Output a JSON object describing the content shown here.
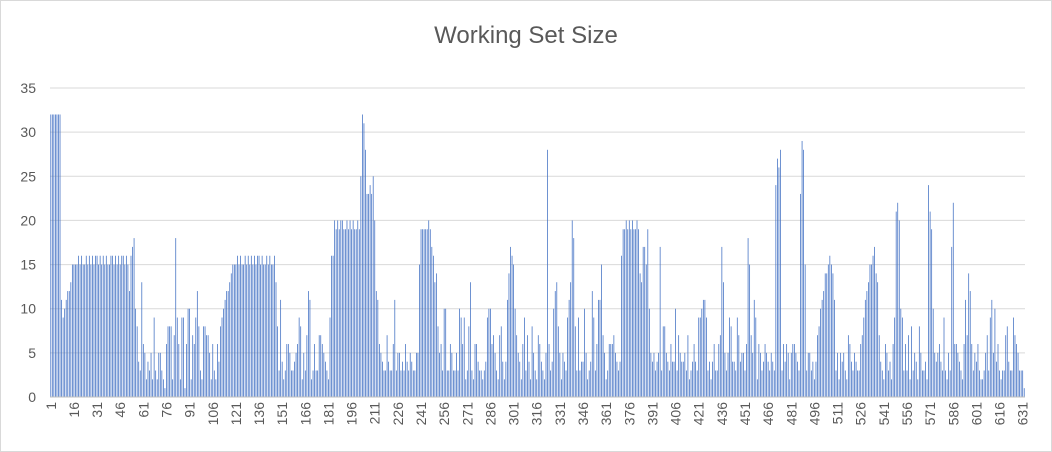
{
  "chart_data": {
    "type": "bar",
    "title": "Working Set Size",
    "xlabel": "",
    "ylabel": "",
    "ylim": [
      0,
      35
    ],
    "yticks": [
      0,
      5,
      10,
      15,
      20,
      25,
      30,
      35
    ],
    "grid": "horizontal",
    "legend": "none",
    "bar_color": "#4472c4",
    "x_start": 1,
    "x_tick_step": 15,
    "values": [
      32,
      32,
      32,
      32,
      32,
      32,
      32,
      11,
      9,
      10,
      11,
      12,
      12,
      13,
      15,
      15,
      15,
      15,
      16,
      15,
      16,
      15,
      15,
      16,
      15,
      16,
      15,
      16,
      15,
      16,
      16,
      15,
      16,
      15,
      16,
      15,
      16,
      15,
      15,
      16,
      16,
      15,
      16,
      15,
      16,
      15,
      16,
      16,
      15,
      16,
      15,
      12,
      16,
      17,
      18,
      10,
      8,
      4,
      3,
      13,
      6,
      5,
      2,
      4,
      3,
      5,
      2,
      9,
      3,
      2,
      5,
      5,
      3,
      2,
      1,
      6,
      8,
      8,
      8,
      2,
      7,
      18,
      9,
      6,
      2,
      9,
      9,
      1,
      6,
      10,
      10,
      2,
      7,
      6,
      9,
      12,
      8,
      3,
      2,
      8,
      8,
      7,
      7,
      5,
      2,
      6,
      3,
      2,
      6,
      4,
      8,
      9,
      10,
      11,
      12,
      12,
      13,
      14,
      15,
      15,
      15,
      16,
      15,
      16,
      15,
      15,
      16,
      15,
      16,
      15,
      16,
      15,
      16,
      15,
      16,
      16,
      15,
      16,
      15,
      15,
      16,
      15,
      16,
      15,
      15,
      16,
      13,
      8,
      3,
      11,
      4,
      2,
      3,
      6,
      6,
      5,
      3,
      3,
      4,
      5,
      6,
      9,
      8,
      2,
      5,
      3,
      7,
      12,
      11,
      2,
      3,
      6,
      3,
      3,
      7,
      7,
      6,
      5,
      4,
      3,
      2,
      9,
      16,
      16,
      20,
      19,
      20,
      19,
      20,
      20,
      19,
      19,
      20,
      19,
      20,
      19,
      20,
      19,
      19,
      20,
      19,
      25,
      32,
      31,
      28,
      23,
      23,
      24,
      23,
      25,
      20,
      12,
      11,
      6,
      5,
      4,
      3,
      3,
      7,
      4,
      3,
      3,
      6,
      11,
      3,
      5,
      5,
      3,
      4,
      3,
      6,
      4,
      3,
      5,
      4,
      3,
      3,
      5,
      5,
      15,
      19,
      19,
      19,
      19,
      19,
      20,
      19,
      17,
      16,
      13,
      14,
      8,
      5,
      6,
      3,
      10,
      10,
      3,
      3,
      6,
      5,
      3,
      3,
      5,
      3,
      10,
      9,
      6,
      9,
      2,
      3,
      8,
      13,
      3,
      2,
      6,
      6,
      4,
      3,
      3,
      2,
      3,
      4,
      9,
      10,
      10,
      6,
      7,
      5,
      3,
      2,
      7,
      8,
      4,
      2,
      4,
      11,
      14,
      17,
      16,
      15,
      10,
      7,
      5,
      4,
      2,
      6,
      9,
      3,
      7,
      4,
      2,
      8,
      5,
      3,
      2,
      7,
      6,
      4,
      3,
      2,
      5,
      28,
      6,
      3,
      4,
      10,
      12,
      13,
      8,
      5,
      2,
      5,
      4,
      3,
      9,
      11,
      13,
      20,
      18,
      8,
      3,
      9,
      3,
      4,
      4,
      10,
      5,
      2,
      3,
      4,
      12,
      9,
      3,
      6,
      11,
      11,
      15,
      7,
      5,
      2,
      3,
      6,
      6,
      6,
      7,
      5,
      4,
      3,
      4,
      16,
      19,
      19,
      20,
      19,
      20,
      19,
      20,
      19,
      19,
      20,
      19,
      14,
      13,
      17,
      17,
      15,
      19,
      10,
      5,
      4,
      5,
      3,
      4,
      5,
      17,
      3,
      8,
      8,
      5,
      4,
      3,
      6,
      4,
      4,
      10,
      3,
      7,
      5,
      4,
      4,
      5,
      3,
      7,
      2,
      3,
      4,
      6,
      4,
      3,
      9,
      9,
      10,
      11,
      11,
      9,
      3,
      4,
      2,
      4,
      6,
      3,
      3,
      6,
      7,
      17,
      13,
      5,
      3,
      5,
      9,
      8,
      4,
      4,
      3,
      9,
      7,
      4,
      5,
      5,
      3,
      6,
      18,
      15,
      7,
      5,
      11,
      9,
      2,
      6,
      5,
      3,
      4,
      6,
      5,
      4,
      3,
      5,
      4,
      3,
      24,
      27,
      26,
      28,
      3,
      6,
      4,
      6,
      5,
      2,
      5,
      6,
      6,
      5,
      4,
      3,
      23,
      29,
      28,
      15,
      3,
      5,
      5,
      3,
      4,
      2,
      4,
      7,
      8,
      10,
      11,
      12,
      14,
      14,
      15,
      16,
      15,
      14,
      11,
      3,
      5,
      2,
      5,
      4,
      5,
      3,
      2,
      7,
      6,
      4,
      3,
      5,
      4,
      3,
      3,
      6,
      7,
      9,
      11,
      12,
      13,
      15,
      15,
      16,
      17,
      14,
      13,
      7,
      4,
      3,
      2,
      6,
      5,
      3,
      4,
      2,
      6,
      9,
      21,
      22,
      20,
      10,
      9,
      3,
      6,
      3,
      7,
      2,
      8,
      3,
      5,
      4,
      2,
      8,
      5,
      3,
      3,
      4,
      2,
      24,
      21,
      19,
      10,
      5,
      4,
      5,
      6,
      4,
      3,
      9,
      3,
      2,
      5,
      3,
      17,
      22,
      6,
      6,
      5,
      4,
      3,
      2,
      6,
      11,
      7,
      14,
      12,
      6,
      3,
      5,
      4,
      6,
      3,
      2,
      2,
      3,
      5,
      7,
      3,
      9,
      11,
      5,
      10,
      4,
      6,
      3,
      2,
      3,
      3,
      7,
      8,
      4,
      3,
      3,
      9,
      7,
      6,
      5,
      3,
      3,
      3,
      1
    ]
  }
}
